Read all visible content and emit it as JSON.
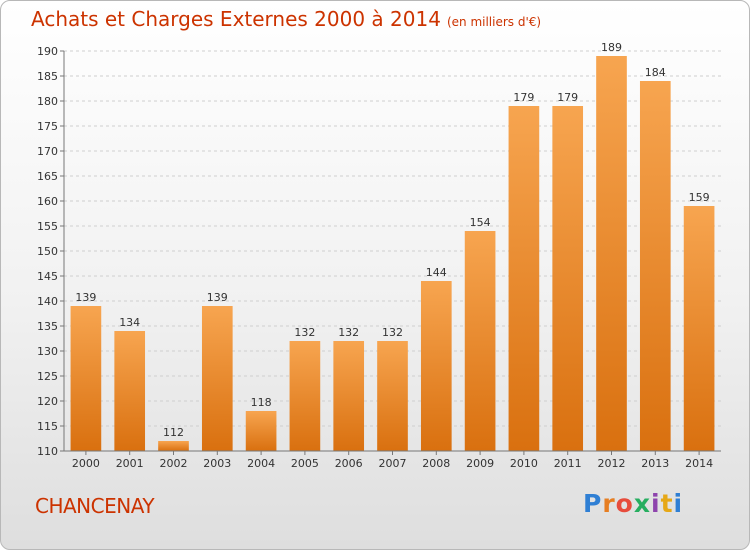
{
  "title": "Achats et Charges Externes 2000 à 2014",
  "subtitle": "(en milliers d'€)",
  "commune": "CHANCENAY",
  "logo": {
    "letters": [
      {
        "char": "P",
        "color": "#2f7fd4"
      },
      {
        "char": "r",
        "color": "#e67e22"
      },
      {
        "char": "o",
        "color": "#e74c3c"
      },
      {
        "char": "x",
        "color": "#27ae60"
      },
      {
        "char": "i",
        "color": "#8e44ad"
      },
      {
        "char": "t",
        "color": "#e6a817"
      },
      {
        "char": "i",
        "color": "#2f7fd4"
      }
    ]
  },
  "chart_data": {
    "type": "bar",
    "title": "Achats et Charges Externes 2000 à 2014",
    "subtitle": "(en milliers d'€)",
    "categories": [
      "2000",
      "2001",
      "2002",
      "2003",
      "2004",
      "2005",
      "2006",
      "2007",
      "2008",
      "2009",
      "2010",
      "2011",
      "2012",
      "2013",
      "2014"
    ],
    "values": [
      139,
      134,
      112,
      139,
      118,
      132,
      132,
      132,
      144,
      154,
      179,
      179,
      189,
      184,
      159
    ],
    "ylim": [
      110,
      190
    ],
    "yticks": [
      110,
      115,
      120,
      125,
      130,
      135,
      140,
      145,
      150,
      155,
      160,
      165,
      170,
      175,
      180,
      185,
      190
    ],
    "grid": true,
    "bar_color": "#f0932b",
    "xlabel": "",
    "ylabel": ""
  }
}
